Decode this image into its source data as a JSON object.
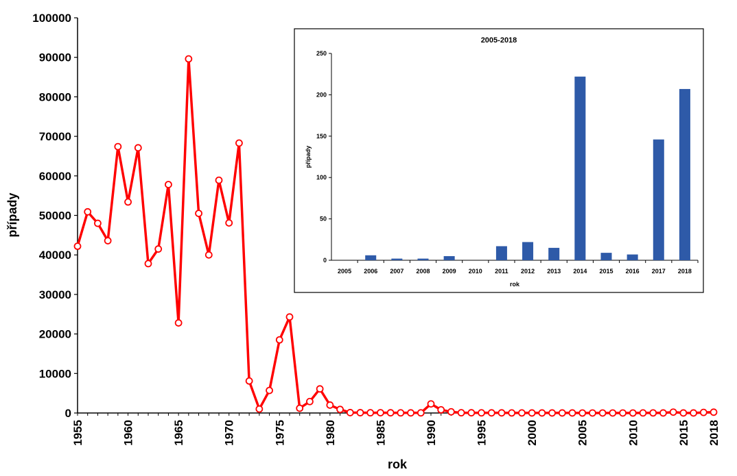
{
  "chart_data": [
    {
      "type": "line",
      "title": "",
      "xlabel": "rok",
      "ylabel": "případy",
      "ylim": [
        0,
        100000
      ],
      "xlim": [
        1955,
        2018
      ],
      "grid": false,
      "y_ticks": [
        "0",
        "10000",
        "20000",
        "30000",
        "40000",
        "50000",
        "60000",
        "70000",
        "80000",
        "90000",
        "100000"
      ],
      "x_ticks": [
        "1955",
        "1960",
        "1965",
        "1970",
        "1975",
        "1980",
        "1985",
        "1990",
        "1995",
        "2000",
        "2005",
        "2010",
        "2015",
        "2018"
      ],
      "color": "#ff0000",
      "x": [
        1955,
        1956,
        1957,
        1958,
        1959,
        1960,
        1961,
        1962,
        1963,
        1964,
        1965,
        1966,
        1967,
        1968,
        1969,
        1970,
        1971,
        1972,
        1973,
        1974,
        1975,
        1976,
        1977,
        1978,
        1979,
        1980,
        1981,
        1982,
        1983,
        1984,
        1985,
        1986,
        1987,
        1988,
        1989,
        1990,
        1991,
        1992,
        1993,
        1994,
        1995,
        1996,
        1997,
        1998,
        1999,
        2000,
        2001,
        2002,
        2003,
        2004,
        2005,
        2006,
        2007,
        2008,
        2009,
        2010,
        2011,
        2012,
        2013,
        2014,
        2015,
        2016,
        2017,
        2018
      ],
      "y": [
        42200,
        50900,
        48000,
        43600,
        67400,
        53400,
        67100,
        37800,
        41500,
        57800,
        22800,
        89600,
        50500,
        40000,
        58900,
        48100,
        68300,
        8100,
        1000,
        5700,
        18500,
        24300,
        1200,
        2900,
        6100,
        2000,
        900,
        100,
        80,
        60,
        70,
        50,
        40,
        30,
        40,
        2300,
        800,
        300,
        60,
        50,
        40,
        30,
        30,
        20,
        20,
        10,
        10,
        10,
        10,
        10,
        0,
        6,
        2,
        2,
        5,
        0,
        17,
        22,
        15,
        222,
        9,
        7,
        146,
        207
      ]
    },
    {
      "type": "bar",
      "title": "2005-2018",
      "xlabel": "rok",
      "ylabel": "případy",
      "ylim": [
        0,
        250
      ],
      "grid": false,
      "y_ticks": [
        "0",
        "50",
        "100",
        "150",
        "200",
        "250"
      ],
      "color": "#2e5aa8",
      "categories": [
        "2005",
        "2006",
        "2007",
        "2008",
        "2009",
        "2010",
        "2011",
        "2012",
        "2013",
        "2014",
        "2015",
        "2016",
        "2017",
        "2018"
      ],
      "values": [
        0,
        6,
        2,
        2,
        5,
        0,
        17,
        22,
        15,
        222,
        9,
        7,
        146,
        207
      ]
    }
  ]
}
